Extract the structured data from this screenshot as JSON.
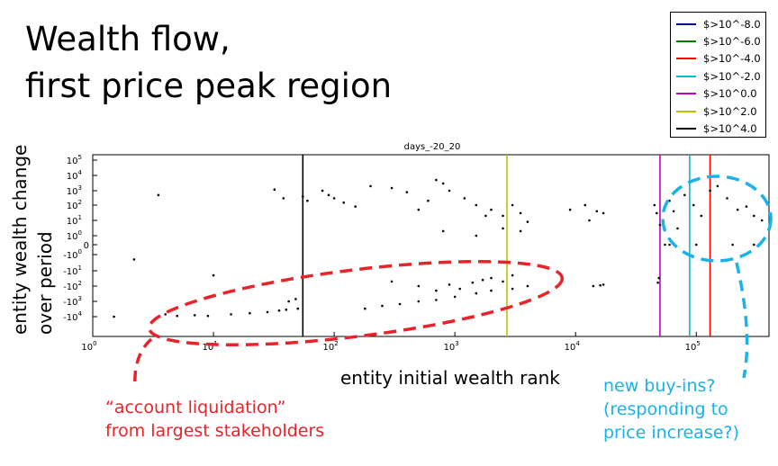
{
  "slide": {
    "title_line1": "Wealth flow,",
    "title_line2": "first price peak region"
  },
  "annotations": {
    "liquidation_line1": "“account liquidation”",
    "liquidation_line2": "from largest stakeholders",
    "buyins_line1": "new buy-ins?",
    "buyins_line2": "(responding to",
    "buyins_line3": "price increase?)",
    "liquidation_color": "#e8232a",
    "buyins_color": "#1ab2e8"
  },
  "chart_data": {
    "type": "scatter",
    "title": "days_-20_20",
    "xlabel": "entity initial wealth rank",
    "ylabel_line1": "entity wealth change",
    "ylabel_line2": "over period",
    "x_scale": "log",
    "y_scale": "symlog",
    "xlim": [
      1,
      400000
    ],
    "ylim": [
      -300000,
      300000
    ],
    "x_ticks": [
      {
        "value": 1,
        "label": "10",
        "exp": "0"
      },
      {
        "value": 10,
        "label": "10",
        "exp": "1"
      },
      {
        "value": 100,
        "label": "10",
        "exp": "2"
      },
      {
        "value": 1000,
        "label": "10",
        "exp": "3"
      },
      {
        "value": 10000,
        "label": "10",
        "exp": "4"
      },
      {
        "value": 100000,
        "label": "10",
        "exp": "5"
      }
    ],
    "y_ticks": [
      {
        "value": 100000,
        "label": "10",
        "exp": "5"
      },
      {
        "value": 10000,
        "label": "10",
        "exp": "4"
      },
      {
        "value": 1000,
        "label": "10",
        "exp": "3"
      },
      {
        "value": 100,
        "label": "10",
        "exp": "2"
      },
      {
        "value": 10,
        "label": "10",
        "exp": "1"
      },
      {
        "value": 1,
        "label": "10",
        "exp": "0"
      },
      {
        "value": 0,
        "label": "0",
        "exp": ""
      },
      {
        "value": -1,
        "label": "-10",
        "exp": "0"
      },
      {
        "value": -10,
        "label": "-10",
        "exp": "1"
      },
      {
        "value": -100,
        "label": "-10",
        "exp": "2"
      },
      {
        "value": -1000,
        "label": "-10",
        "exp": "3"
      },
      {
        "value": -10000,
        "label": "-10",
        "exp": "4"
      }
    ],
    "legend": [
      {
        "label": "$>10^-8.0",
        "color": "#00008b",
        "x": 1100000
      },
      {
        "label": "$>10^-6.0",
        "color": "#007a00",
        "x": 1000000
      },
      {
        "label": "$>10^-4.0",
        "color": "#ff0000",
        "x": 130000
      },
      {
        "label": "$>10^-2.0",
        "color": "#00bfbf",
        "x": 88000
      },
      {
        "label": "$>10^0.0",
        "color": "#bf00bf",
        "x": 50000
      },
      {
        "label": "$>10^2.0",
        "color": "#bfbf00",
        "x": 2700
      },
      {
        "label": "$>10^4.0",
        "color": "#000000",
        "x": 55
      }
    ],
    "legend_position": "outside top-right",
    "grid": false,
    "points": [
      [
        1.5,
        -30000
      ],
      [
        2.2,
        -2
      ],
      [
        3.5,
        500
      ],
      [
        32,
        1200
      ],
      [
        10,
        -20
      ],
      [
        4,
        -7000
      ],
      [
        5,
        -9000
      ],
      [
        7,
        -8000
      ],
      [
        9,
        -9000
      ],
      [
        14,
        -7000
      ],
      [
        20,
        -6000
      ],
      [
        28,
        -5000
      ],
      [
        35,
        -4000
      ],
      [
        40,
        -3500
      ],
      [
        50,
        -3000
      ],
      [
        42,
        -1000
      ],
      [
        48,
        -700
      ],
      [
        38,
        300
      ],
      [
        55,
        400
      ],
      [
        60,
        200
      ],
      [
        80,
        1000
      ],
      [
        90,
        500
      ],
      [
        100,
        300
      ],
      [
        120,
        150
      ],
      [
        150,
        80
      ],
      [
        200,
        2000
      ],
      [
        300,
        1500
      ],
      [
        400,
        800
      ],
      [
        500,
        50
      ],
      [
        600,
        200
      ],
      [
        700,
        5000
      ],
      [
        800,
        3000
      ],
      [
        900,
        1000
      ],
      [
        1200,
        300
      ],
      [
        1500,
        100
      ],
      [
        1800,
        20
      ],
      [
        2000,
        50
      ],
      [
        2500,
        20
      ],
      [
        3000,
        100
      ],
      [
        3500,
        30
      ],
      [
        4000,
        8
      ],
      [
        300,
        -50
      ],
      [
        500,
        -100
      ],
      [
        700,
        -200
      ],
      [
        900,
        -80
      ],
      [
        1100,
        -150
      ],
      [
        1400,
        -60
      ],
      [
        1700,
        -40
      ],
      [
        2000,
        -30
      ],
      [
        2500,
        -50
      ],
      [
        3000,
        -20
      ],
      [
        800,
        2
      ],
      [
        1500,
        1
      ],
      [
        2500,
        3
      ],
      [
        3500,
        2
      ],
      [
        180,
        -3000
      ],
      [
        250,
        -2000
      ],
      [
        350,
        -1500
      ],
      [
        500,
        -1000
      ],
      [
        700,
        -800
      ],
      [
        1000,
        -500
      ],
      [
        1500,
        -300
      ],
      [
        2000,
        -200
      ],
      [
        3000,
        -150
      ],
      [
        4000,
        -100
      ],
      [
        9000,
        50
      ],
      [
        12000,
        100
      ],
      [
        14000,
        -100
      ],
      [
        13000,
        10
      ],
      [
        15000,
        40
      ],
      [
        16000,
        -90
      ],
      [
        17000,
        30
      ],
      [
        17000,
        -80
      ],
      [
        45000,
        100
      ],
      [
        47000,
        30
      ],
      [
        50000,
        5
      ],
      [
        55000,
        0
      ],
      [
        60000,
        0
      ],
      [
        48000,
        -60
      ],
      [
        49000,
        -30
      ],
      [
        60000,
        200
      ],
      [
        65000,
        40
      ],
      [
        70000,
        3
      ],
      [
        80000,
        500
      ],
      [
        95000,
        100
      ],
      [
        110000,
        20
      ],
      [
        130000,
        1000
      ],
      [
        150000,
        2000
      ],
      [
        180000,
        300
      ],
      [
        220000,
        50
      ],
      [
        260000,
        80
      ],
      [
        300000,
        20
      ],
      [
        350000,
        10
      ],
      [
        100000,
        0
      ],
      [
        200000,
        0
      ],
      [
        300000,
        0
      ]
    ]
  }
}
